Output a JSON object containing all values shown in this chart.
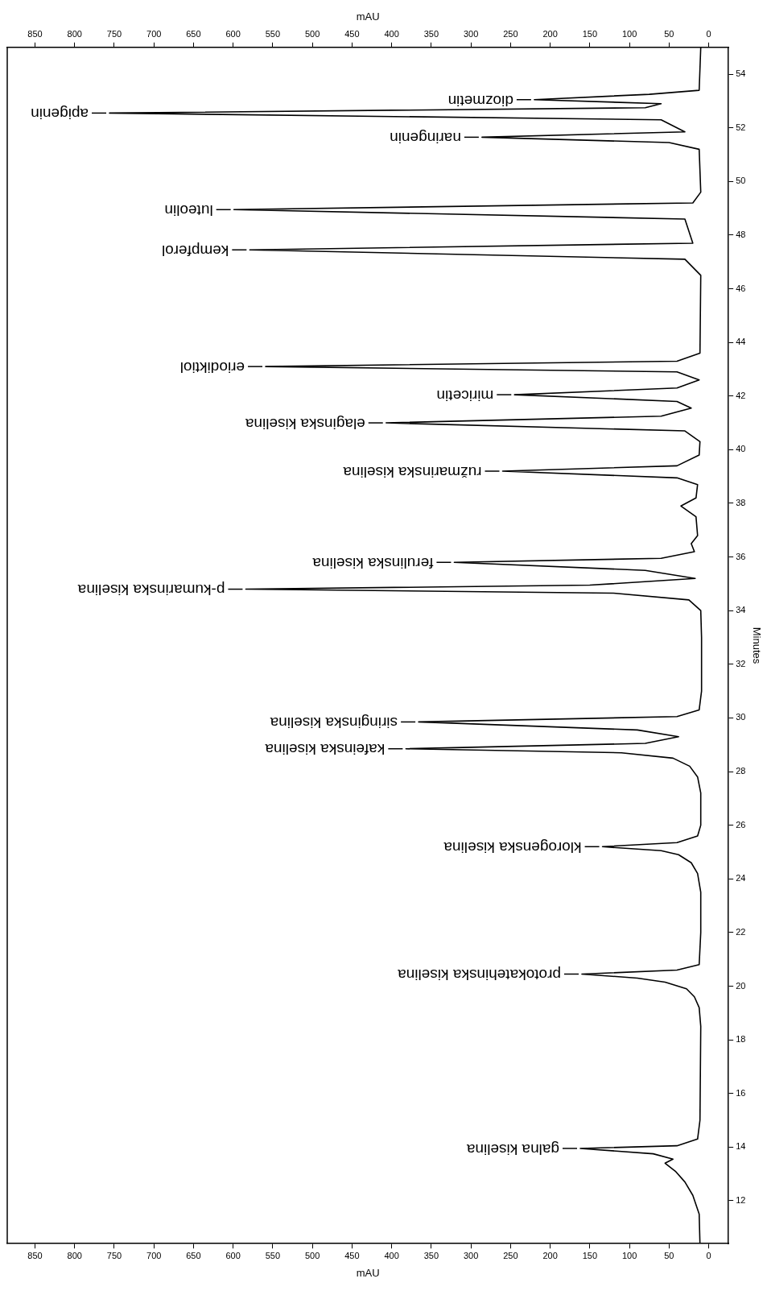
{
  "chart_data": {
    "type": "line",
    "xlabel": "mAU",
    "x2label": "mAU",
    "ylabel": "Minutes",
    "xlim": [
      885,
      -25
    ],
    "xticks": [
      850,
      800,
      750,
      700,
      650,
      600,
      550,
      500,
      450,
      400,
      350,
      300,
      250,
      200,
      150,
      100,
      50,
      0
    ],
    "x2lim": [
      885,
      -25
    ],
    "x2ticks": [
      850,
      800,
      750,
      700,
      650,
      600,
      550,
      500,
      450,
      400,
      350,
      300,
      250,
      200,
      150,
      100,
      50,
      0
    ],
    "ylim": [
      10.4,
      55
    ],
    "yticks": [
      12,
      14,
      16,
      18,
      20,
      22,
      24,
      26,
      28,
      30,
      32,
      34,
      36,
      38,
      40,
      42,
      44,
      46,
      48,
      50,
      52,
      54
    ],
    "grid": false,
    "legend": false,
    "marker": "none",
    "line_style": "solid",
    "series": [
      {
        "color": "#000000",
        "x": [
          11,
          12,
          20,
          30,
          42,
          55,
          45,
          70,
          162,
          40,
          14,
          11,
          10,
          12,
          18,
          28,
          55,
          90,
          160,
          40,
          12,
          10,
          10,
          14,
          22,
          38,
          60,
          134,
          40,
          14,
          10,
          10,
          14,
          24,
          45,
          110,
          382,
          80,
          38,
          90,
          366,
          40,
          12,
          9,
          9,
          10,
          25,
          120,
          584,
          150,
          17,
          80,
          321,
          60,
          18,
          22,
          14,
          16,
          35,
          16,
          14,
          40,
          260,
          40,
          12,
          11,
          30,
          407,
          60,
          22,
          40,
          245,
          40,
          12,
          40,
          559,
          40,
          11,
          10,
          30,
          579,
          20,
          30,
          599,
          20,
          10,
          12,
          50,
          286,
          30,
          60,
          756,
          80,
          60,
          220,
          75,
          12,
          10
        ],
        "values": [
          10.4,
          11.5,
          12.2,
          12.7,
          13.1,
          13.4,
          13.55,
          13.75,
          13.95,
          14.05,
          14.3,
          15,
          18.5,
          19.2,
          19.6,
          19.9,
          20.15,
          20.3,
          20.45,
          20.6,
          20.8,
          22,
          23.5,
          24.2,
          24.6,
          24.9,
          25.05,
          25.2,
          25.35,
          25.6,
          26,
          27.2,
          27.8,
          28.2,
          28.5,
          28.7,
          28.85,
          29.05,
          29.3,
          29.55,
          29.85,
          30.05,
          30.3,
          31,
          33,
          34,
          34.4,
          34.65,
          34.8,
          34.95,
          35.2,
          35.5,
          35.8,
          35.95,
          36.2,
          36.5,
          36.8,
          37.5,
          37.9,
          38.2,
          38.7,
          38.95,
          39.2,
          39.4,
          39.8,
          40.3,
          40.7,
          41,
          41.25,
          41.55,
          41.8,
          42.05,
          42.3,
          42.6,
          42.9,
          43.1,
          43.3,
          43.6,
          46.5,
          47.1,
          47.45,
          47.7,
          48.6,
          48.95,
          49.2,
          49.6,
          51.2,
          51.45,
          51.65,
          51.85,
          52.3,
          52.55,
          52.75,
          52.9,
          53.05,
          53.25,
          53.4,
          55
        ]
      }
    ],
    "annotations": [
      {
        "text": "galna kiselina",
        "x": 162,
        "y": 13.95
      },
      {
        "text": "protokatehinska kiselina",
        "x": 160,
        "y": 20.45
      },
      {
        "text": "klorogenska kiselina",
        "x": 134,
        "y": 25.2
      },
      {
        "text": "kafeinska kiselina",
        "x": 382,
        "y": 28.85
      },
      {
        "text": "siringinska kiselina",
        "x": 366,
        "y": 29.85
      },
      {
        "text": "p-kumarinska kiselina",
        "x": 584,
        "y": 34.8
      },
      {
        "text": "ferulinska kiselina",
        "x": 321,
        "y": 35.8
      },
      {
        "text": "ružmarinska kiselina",
        "x": 260,
        "y": 39.2
      },
      {
        "text": "elaginska kiselina",
        "x": 407,
        "y": 41.0
      },
      {
        "text": "miricetin",
        "x": 245,
        "y": 42.05
      },
      {
        "text": "eriodiktiol",
        "x": 559,
        "y": 43.1
      },
      {
        "text": "kempferol",
        "x": 579,
        "y": 47.45
      },
      {
        "text": "luteolin",
        "x": 599,
        "y": 48.95
      },
      {
        "text": "naringenin",
        "x": 286,
        "y": 51.65
      },
      {
        "text": "apigenin",
        "x": 756,
        "y": 52.55
      },
      {
        "text": "diozmetin",
        "x": 220,
        "y": 53.05
      }
    ]
  }
}
